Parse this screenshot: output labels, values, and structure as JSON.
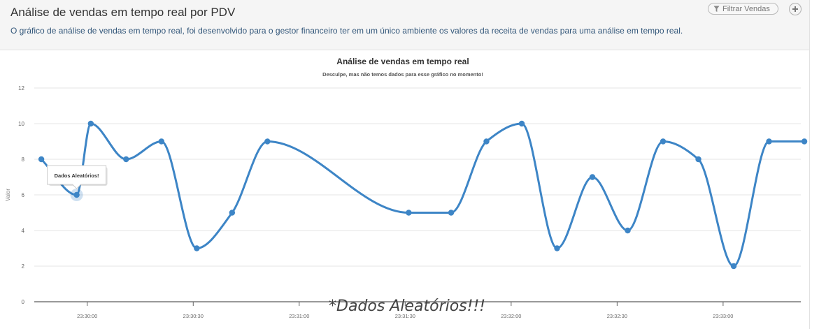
{
  "header": {
    "title": "Análise de vendas em tempo real por PDV",
    "subtitle": "O gráfico de análise de vendas em tempo real, foi desenvolvido para o gestor financeiro ter em um único ambiente os valores da receita de vendas para uma análise em tempo real.",
    "filter_label": "Filtrar Vendas",
    "filter_icon": "funnel-icon",
    "add_icon": "plus-circle-icon"
  },
  "colors": {
    "series": "#3d85c6",
    "grid": "#e6e6e6",
    "axis_text": "#666666"
  },
  "chart_data": {
    "type": "line",
    "title": "Análise de vendas em tempo real",
    "subtitle": "Desculpe, mas não temos dados para esse gráfico no momento!",
    "ylabel": "Valor",
    "xlabel": "",
    "ylim": [
      0,
      12
    ],
    "yticks": [
      "0",
      "2",
      "4",
      "6",
      "8",
      "10",
      "12"
    ],
    "xlim": [
      "23:29:45",
      "23:33:22"
    ],
    "xticks": [
      {
        "t": "23:30:00",
        "label": "23:30:00"
      },
      {
        "t": "23:30:30",
        "label": "23:30:30"
      },
      {
        "t": "23:31:00",
        "label": "23:31:00"
      },
      {
        "t": "23:31:30",
        "label": "23:31:30"
      },
      {
        "t": "23:32:00",
        "label": "23:32:00"
      },
      {
        "t": "23:32:30",
        "label": "23:32:30"
      },
      {
        "t": "23:33:00",
        "label": "23:33:00"
      }
    ],
    "grid": true,
    "legend": "none",
    "series": [
      {
        "name": "Dados Aleatórios!",
        "points": [
          {
            "t": "23:29:47",
            "y": 8
          },
          {
            "t": "23:29:57",
            "y": 6
          },
          {
            "t": "23:30:01",
            "y": 10
          },
          {
            "t": "23:30:11",
            "y": 8
          },
          {
            "t": "23:30:21",
            "y": 9
          },
          {
            "t": "23:30:31",
            "y": 3
          },
          {
            "t": "23:30:41",
            "y": 5
          },
          {
            "t": "23:30:51",
            "y": 9
          },
          {
            "t": "23:31:31",
            "y": 5
          },
          {
            "t": "23:31:43",
            "y": 5
          },
          {
            "t": "23:31:53",
            "y": 9
          },
          {
            "t": "23:32:03",
            "y": 10
          },
          {
            "t": "23:32:13",
            "y": 3
          },
          {
            "t": "23:32:23",
            "y": 7
          },
          {
            "t": "23:32:33",
            "y": 4
          },
          {
            "t": "23:32:43",
            "y": 9
          },
          {
            "t": "23:32:53",
            "y": 8
          },
          {
            "t": "23:33:03",
            "y": 2
          },
          {
            "t": "23:33:13",
            "y": 9
          },
          {
            "t": "23:33:23",
            "y": 9
          }
        ]
      }
    ],
    "tooltip": {
      "text": "Dados Aleatórios!",
      "point_index": 1
    },
    "watermark": "*Dados Aleatórios!!!"
  }
}
